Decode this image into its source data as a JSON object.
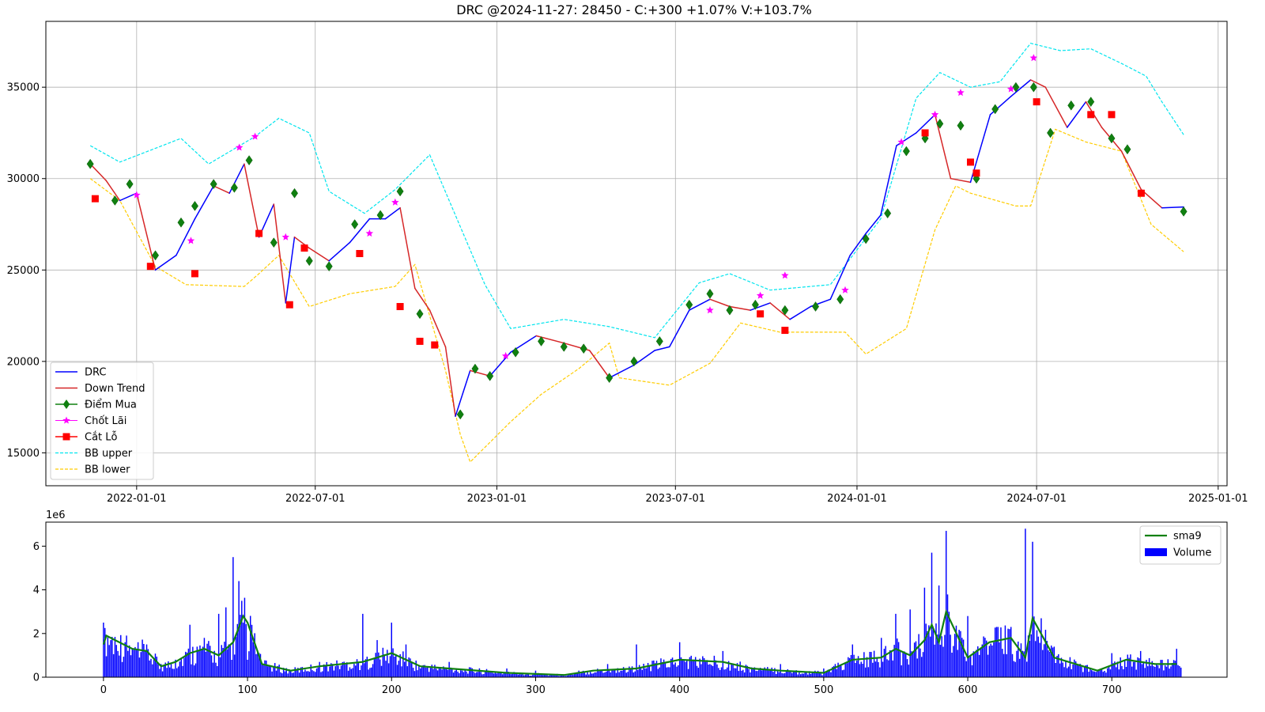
{
  "chart_data": [
    {
      "type": "line",
      "title": "DRC @2024-11-27: 28450 - C:+300 +1.07% V:+103.7%",
      "xlabel": "",
      "ylabel": "",
      "x_ticks": [
        "2022-01-01",
        "2022-07-01",
        "2023-01-01",
        "2023-07-01",
        "2024-01-01",
        "2024-07-01",
        "2025-01-01"
      ],
      "y_ticks": [
        15000,
        20000,
        25000,
        30000,
        35000
      ],
      "xlim": [
        "2021-10-01",
        "2025-01-10"
      ],
      "ylim": [
        13200,
        38600
      ],
      "grid": true,
      "legend_position": "lower-left",
      "colors": {
        "price": "#0000ff",
        "downtrend": "#d62728",
        "buy": "#108010",
        "takeprofit": "#ff00ff",
        "stoploss": "#ff0000",
        "bb_upper": "#00e5ee",
        "bb_lower": "#ffcc00"
      },
      "legend": [
        "DRC",
        "Down Trend",
        "Điểm Mua",
        "Chốt Lãi",
        "Cắt Lỗ",
        "BB upper",
        "BB lower"
      ],
      "series": [
        {
          "name": "DRC",
          "x": [
            "2021-11-15",
            "2021-12-01",
            "2021-12-15",
            "2022-01-01",
            "2022-01-20",
            "2022-02-10",
            "2022-03-01",
            "2022-03-20",
            "2022-04-05",
            "2022-04-20",
            "2022-05-05",
            "2022-05-20",
            "2022-06-01",
            "2022-06-10",
            "2022-06-25",
            "2022-07-15",
            "2022-08-05",
            "2022-08-25",
            "2022-09-10",
            "2022-09-25",
            "2022-10-10",
            "2022-10-25",
            "2022-11-10",
            "2022-11-20",
            "2022-12-05",
            "2022-12-25",
            "2023-01-15",
            "2023-02-10",
            "2023-03-10",
            "2023-04-05",
            "2023-04-25",
            "2023-05-20",
            "2023-06-10",
            "2023-06-25",
            "2023-07-15",
            "2023-08-05",
            "2023-08-25",
            "2023-09-15",
            "2023-10-05",
            "2023-10-25",
            "2023-11-15",
            "2023-12-05",
            "2023-12-25",
            "2024-01-10",
            "2024-01-25",
            "2024-02-10",
            "2024-03-01",
            "2024-03-20",
            "2024-04-05",
            "2024-04-25",
            "2024-05-15",
            "2024-06-05",
            "2024-06-25",
            "2024-07-10",
            "2024-08-01",
            "2024-08-20",
            "2024-09-05",
            "2024-09-25",
            "2024-10-15",
            "2024-11-05",
            "2024-11-27"
          ],
          "values": [
            30800,
            29900,
            28800,
            29200,
            25000,
            25800,
            27800,
            29600,
            29200,
            30800,
            26800,
            28600,
            23200,
            26800,
            26200,
            25500,
            26500,
            27800,
            27800,
            28400,
            24000,
            22800,
            20800,
            17000,
            19500,
            19200,
            20500,
            21400,
            21000,
            20600,
            19100,
            19800,
            20600,
            20800,
            22800,
            23400,
            23000,
            22800,
            23200,
            22300,
            23000,
            23400,
            25800,
            27000,
            28000,
            31800,
            32500,
            33500,
            30000,
            29800,
            33500,
            34500,
            35400,
            35000,
            32800,
            34200,
            32800,
            31500,
            29400,
            28400,
            28450
          ]
        },
        {
          "name": "BB upper",
          "x": [
            "2021-11-15",
            "2021-12-15",
            "2022-02-15",
            "2022-03-15",
            "2022-05-01",
            "2022-05-25",
            "2022-06-25",
            "2022-07-15",
            "2022-08-20",
            "2022-09-20",
            "2022-10-25",
            "2022-11-20",
            "2022-12-20",
            "2023-01-15",
            "2023-03-10",
            "2023-04-25",
            "2023-06-10",
            "2023-07-25",
            "2023-08-25",
            "2023-10-05",
            "2023-12-05",
            "2024-01-25",
            "2024-03-01",
            "2024-03-25",
            "2024-04-25",
            "2024-05-25",
            "2024-06-25",
            "2024-07-25",
            "2024-08-25",
            "2024-09-25",
            "2024-10-20",
            "2024-11-05",
            "2024-11-27"
          ],
          "values": [
            31800,
            30900,
            32200,
            30800,
            32300,
            33300,
            32500,
            29300,
            28100,
            29400,
            31300,
            28000,
            24200,
            21800,
            22300,
            21900,
            21300,
            24300,
            24800,
            23900,
            24200,
            27800,
            34400,
            35800,
            35000,
            35300,
            37400,
            37000,
            37100,
            36300,
            35600,
            34200,
            32400
          ]
        },
        {
          "name": "BB lower",
          "x": [
            "2021-11-15",
            "2021-12-15",
            "2022-01-20",
            "2022-02-20",
            "2022-04-20",
            "2022-05-05",
            "2022-05-25",
            "2022-06-25",
            "2022-08-05",
            "2022-09-20",
            "2022-10-10",
            "2022-11-10",
            "2022-11-25",
            "2022-12-05",
            "2023-01-15",
            "2023-02-15",
            "2023-03-25",
            "2023-04-25",
            "2023-05-05",
            "2023-06-25",
            "2023-08-05",
            "2023-09-05",
            "2023-10-15",
            "2023-12-20",
            "2024-01-10",
            "2024-02-20",
            "2024-03-20",
            "2024-04-10",
            "2024-04-25",
            "2024-06-10",
            "2024-06-25",
            "2024-07-20",
            "2024-08-20",
            "2024-09-25",
            "2024-10-25",
            "2024-11-27"
          ],
          "values": [
            30000,
            28800,
            25200,
            24200,
            24100,
            24800,
            25800,
            23000,
            23700,
            24100,
            25300,
            19500,
            16000,
            14500,
            16700,
            18200,
            19600,
            21000,
            19100,
            18700,
            19900,
            22100,
            21600,
            21600,
            20400,
            21800,
            27200,
            29600,
            29200,
            28500,
            28500,
            32700,
            32000,
            31500,
            27500,
            26000
          ]
        }
      ],
      "signals": {
        "Điểm Mua": {
          "x": [
            "2021-11-15",
            "2021-12-10",
            "2021-12-25",
            "2022-01-20",
            "2022-02-15",
            "2022-03-01",
            "2022-03-20",
            "2022-04-10",
            "2022-04-25",
            "2022-05-20",
            "2022-06-10",
            "2022-06-25",
            "2022-07-15",
            "2022-08-10",
            "2022-09-05",
            "2022-09-25",
            "2022-10-15",
            "2022-11-25",
            "2022-12-10",
            "2022-12-25",
            "2023-01-20",
            "2023-02-15",
            "2023-03-10",
            "2023-03-30",
            "2023-04-25",
            "2023-05-20",
            "2023-06-15",
            "2023-07-15",
            "2023-08-05",
            "2023-08-25",
            "2023-09-20",
            "2023-10-20",
            "2023-11-20",
            "2023-12-15",
            "2024-01-10",
            "2024-02-01",
            "2024-02-20",
            "2024-03-10",
            "2024-03-25",
            "2024-04-15",
            "2024-05-01",
            "2024-05-20",
            "2024-06-10",
            "2024-06-28",
            "2024-07-15",
            "2024-08-05",
            "2024-08-25",
            "2024-09-15",
            "2024-10-01",
            "2024-11-27"
          ],
          "y": [
            30800,
            28800,
            29700,
            25800,
            27600,
            28500,
            29700,
            29500,
            31000,
            26500,
            29200,
            25500,
            25200,
            27500,
            28000,
            29300,
            22600,
            17100,
            19600,
            19200,
            20500,
            21100,
            20800,
            20700,
            19100,
            20000,
            21100,
            23100,
            23700,
            22800,
            23100,
            22800,
            23000,
            23400,
            26700,
            28100,
            31500,
            32200,
            33000,
            32900,
            30000,
            33800,
            35000,
            35000,
            32500,
            34000,
            34200,
            32200,
            31600,
            28200
          ]
        },
        "Chốt Lãi": {
          "x": [
            "2022-01-01",
            "2022-02-25",
            "2022-04-15",
            "2022-05-01",
            "2022-06-01",
            "2022-08-25",
            "2022-09-20",
            "2023-01-10",
            "2023-08-05",
            "2023-09-25",
            "2023-10-20",
            "2023-12-20",
            "2024-02-15",
            "2024-03-20",
            "2024-04-15",
            "2024-06-05",
            "2024-06-28"
          ],
          "y": [
            29100,
            26600,
            31700,
            32300,
            26800,
            27000,
            28700,
            20300,
            22800,
            23600,
            24700,
            23900,
            32000,
            33500,
            34700,
            34900,
            36600
          ]
        },
        "Cắt Lỗ": {
          "x": [
            "2021-11-20",
            "2022-01-15",
            "2022-03-01",
            "2022-05-05",
            "2022-06-05",
            "2022-06-20",
            "2022-08-15",
            "2022-09-25",
            "2022-10-15",
            "2022-10-30",
            "2023-09-25",
            "2023-10-20",
            "2024-03-10",
            "2024-04-25",
            "2024-05-01",
            "2024-07-01",
            "2024-08-25",
            "2024-09-15",
            "2024-10-15"
          ],
          "y": [
            28900,
            25200,
            24800,
            27000,
            23100,
            26200,
            25900,
            23000,
            21100,
            20900,
            22600,
            21700,
            32500,
            30900,
            30300,
            34200,
            33500,
            33500,
            29200
          ]
        }
      }
    },
    {
      "type": "bar",
      "title": "",
      "scale_label": "1e6",
      "legend": [
        "sma9",
        "Volume"
      ],
      "legend_position": "top-right",
      "x_ticks": [
        0,
        100,
        200,
        300,
        400,
        500,
        600,
        700
      ],
      "y_ticks": [
        0,
        2,
        4,
        6
      ],
      "xlim": [
        -40,
        780
      ],
      "ylim": [
        0,
        7.1
      ],
      "colors": {
        "volume": "#0000ff",
        "sma9": "#108010"
      },
      "series": [
        {
          "name": "Volume",
          "x": [
            0,
            5,
            10,
            15,
            20,
            25,
            30,
            40,
            50,
            60,
            65,
            70,
            75,
            80,
            85,
            90,
            94,
            97,
            100,
            110,
            120,
            150,
            180,
            190,
            200,
            210,
            240,
            280,
            300,
            330,
            350,
            370,
            400,
            430,
            470,
            500,
            520,
            540,
            550,
            560,
            570,
            575,
            580,
            585,
            600,
            610,
            620,
            630,
            640,
            645,
            660,
            700,
            720,
            745
          ],
          "values": [
            2.5,
            1.7,
            1.2,
            1.6,
            1.3,
            0.9,
            1.5,
            0.6,
            0.8,
            2.4,
            1.4,
            1.8,
            1.0,
            2.9,
            3.2,
            5.5,
            4.4,
            2.5,
            0.8,
            0.6,
            0.3,
            0.7,
            2.9,
            1.7,
            2.5,
            1.5,
            0.7,
            0.4,
            0.3,
            0.3,
            0.6,
            1.5,
            1.6,
            1.2,
            0.6,
            0.4,
            1.5,
            1.8,
            2.9,
            3.1,
            4.1,
            5.7,
            4.2,
            6.7,
            2.8,
            1.5,
            2.3,
            2.3,
            6.8,
            6.2,
            1.4,
            1.1,
            1.2,
            1.3
          ]
        },
        {
          "name": "sma9",
          "x": [
            0,
            2,
            8,
            20,
            30,
            40,
            50,
            60,
            70,
            80,
            90,
            97,
            100,
            110,
            130,
            150,
            180,
            200,
            220,
            240,
            280,
            320,
            340,
            370,
            400,
            430,
            450,
            470,
            500,
            520,
            540,
            550,
            560,
            570,
            575,
            580,
            585,
            600,
            615,
            630,
            640,
            645,
            660,
            690,
            710,
            730,
            745
          ],
          "values": [
            1.5,
            1.9,
            1.7,
            1.3,
            1.2,
            0.5,
            0.7,
            1.1,
            1.3,
            1.0,
            1.6,
            2.8,
            2.5,
            0.6,
            0.3,
            0.5,
            0.7,
            1.1,
            0.5,
            0.4,
            0.2,
            0.1,
            0.3,
            0.4,
            0.8,
            0.7,
            0.4,
            0.3,
            0.2,
            0.8,
            0.9,
            1.3,
            1.0,
            1.7,
            2.4,
            1.6,
            3.0,
            0.9,
            1.6,
            1.8,
            0.9,
            2.7,
            0.9,
            0.3,
            0.8,
            0.6,
            0.6
          ]
        }
      ]
    }
  ]
}
